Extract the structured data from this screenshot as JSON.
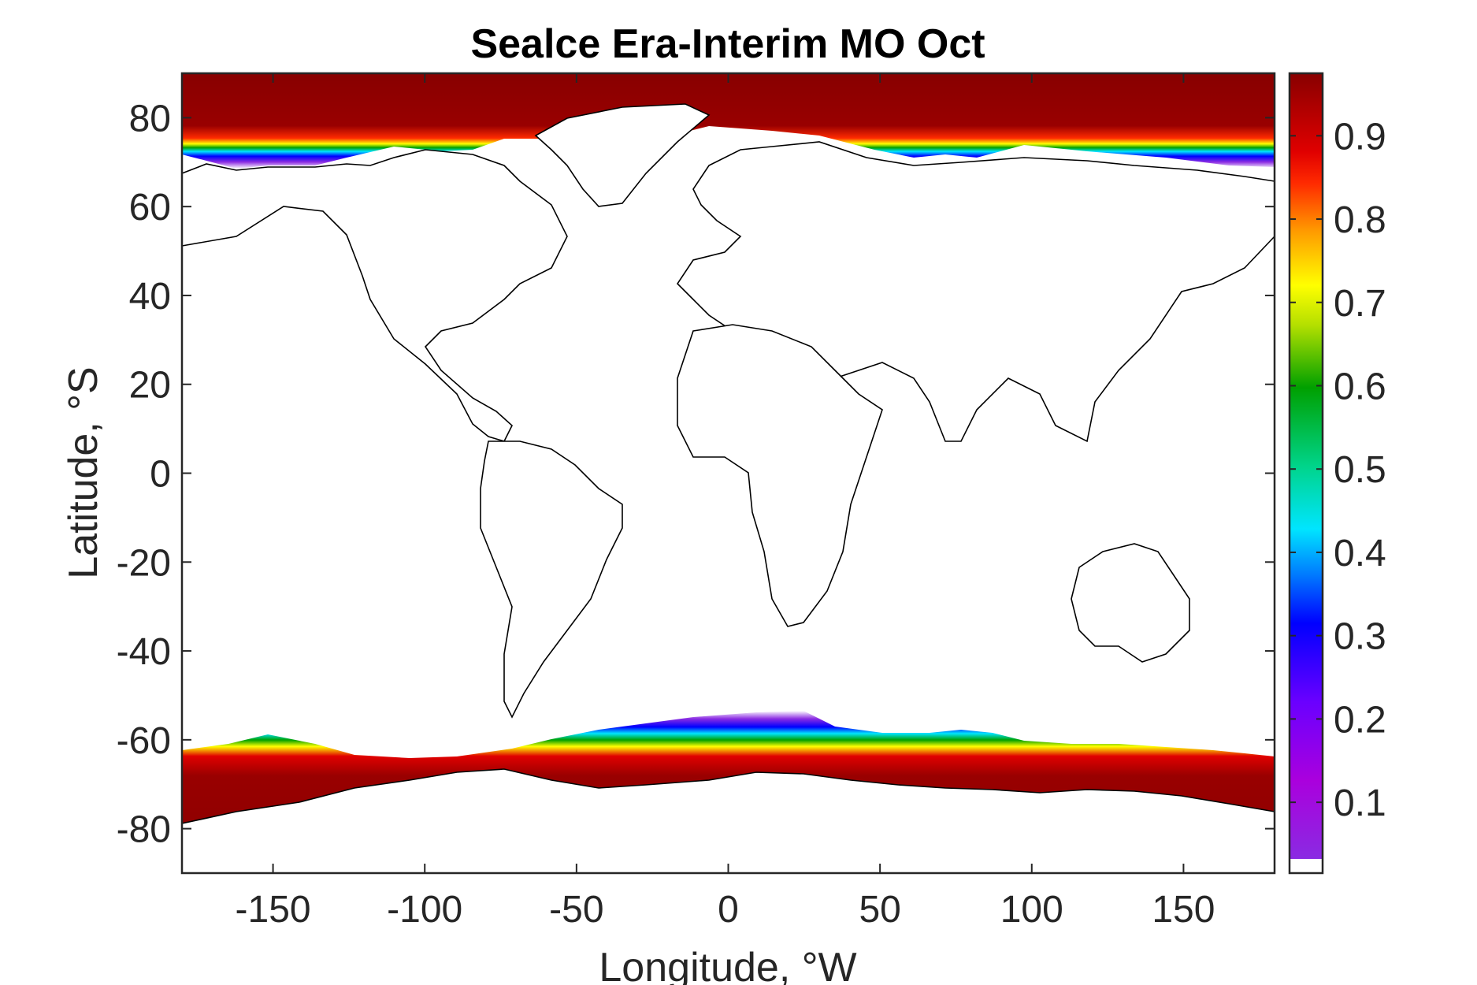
{
  "chart_data": {
    "type": "heatmap",
    "title": "Sealce Era-Interim MO Oct",
    "xlabel": "Longitude, °W",
    "ylabel": "Latitude, °S",
    "xlim": [
      -180,
      180
    ],
    "ylim": [
      -90,
      90
    ],
    "xticks": [
      -150,
      -100,
      -50,
      0,
      50,
      100,
      150
    ],
    "yticks": [
      -80,
      -60,
      -40,
      -20,
      0,
      20,
      40,
      60,
      80
    ],
    "colorbar": {
      "range": [
        0.015,
        0.975
      ],
      "ticks": [
        0.1,
        0.2,
        0.3,
        0.4,
        0.5,
        0.6,
        0.7,
        0.8,
        0.9
      ],
      "colormap": [
        "#ffffff",
        "#8a2be2",
        "#aa00dd",
        "#6a00ff",
        "#0000ff",
        "#0077ff",
        "#00e5ff",
        "#00d48a",
        "#00a000",
        "#b5e000",
        "#ffff00",
        "#ff9900",
        "#ff2a00",
        "#e00000",
        "#880000"
      ]
    },
    "overlays": [
      "coastlines"
    ],
    "fields": [
      {
        "region": "Arctic",
        "lon_range": [
          -180,
          180
        ],
        "lat_range": [
          62,
          90
        ],
        "description_values": {
          "interior": 0.97,
          "edge": 0.1
        }
      },
      {
        "region": "Antarctic",
        "lon_range": [
          -180,
          180
        ],
        "lat_range": [
          -90,
          -54
        ],
        "description_values": {
          "interior": 0.97,
          "edge": 0.1
        }
      }
    ]
  }
}
